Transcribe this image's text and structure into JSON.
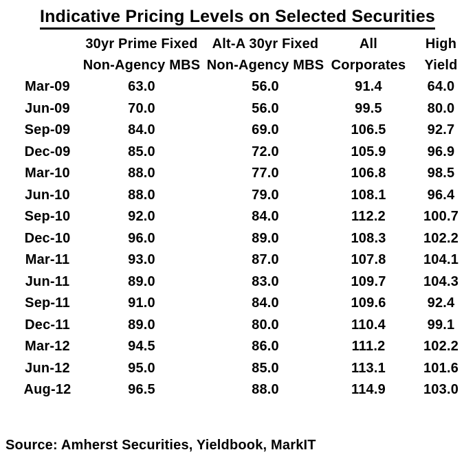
{
  "title": "Indicative Pricing Levels on Selected Securities",
  "table": {
    "columns": [
      {
        "line1": "",
        "line2": ""
      },
      {
        "line1": "30yr Prime Fixed",
        "line2": "Non-Agency MBS"
      },
      {
        "line1": "Alt-A 30yr Fixed",
        "line2": "Non-Agency MBS"
      },
      {
        "line1": "All",
        "line2": "Corporates"
      },
      {
        "line1": "High",
        "line2": "Yield"
      }
    ],
    "rows": [
      {
        "label": "Mar-09",
        "values": [
          "63.0",
          "56.0",
          "91.4",
          "64.0"
        ]
      },
      {
        "label": "Jun-09",
        "values": [
          "70.0",
          "56.0",
          "99.5",
          "80.0"
        ]
      },
      {
        "label": "Sep-09",
        "values": [
          "84.0",
          "69.0",
          "106.5",
          "92.7"
        ]
      },
      {
        "label": "Dec-09",
        "values": [
          "85.0",
          "72.0",
          "105.9",
          "96.9"
        ]
      },
      {
        "label": "Mar-10",
        "values": [
          "88.0",
          "77.0",
          "106.8",
          "98.5"
        ]
      },
      {
        "label": "Jun-10",
        "values": [
          "88.0",
          "79.0",
          "108.1",
          "96.4"
        ]
      },
      {
        "label": "Sep-10",
        "values": [
          "92.0",
          "84.0",
          "112.2",
          "100.7"
        ]
      },
      {
        "label": "Dec-10",
        "values": [
          "96.0",
          "89.0",
          "108.3",
          "102.2"
        ]
      },
      {
        "label": "Mar-11",
        "values": [
          "93.0",
          "87.0",
          "107.8",
          "104.1"
        ]
      },
      {
        "label": "Jun-11",
        "values": [
          "89.0",
          "83.0",
          "109.7",
          "104.3"
        ]
      },
      {
        "label": "Sep-11",
        "values": [
          "91.0",
          "84.0",
          "109.6",
          "92.4"
        ]
      },
      {
        "label": "Dec-11",
        "values": [
          "89.0",
          "80.0",
          "110.4",
          "99.1"
        ]
      },
      {
        "label": "Mar-12",
        "values": [
          "94.5",
          "86.0",
          "111.2",
          "102.2"
        ]
      },
      {
        "label": "Jun-12",
        "values": [
          "95.0",
          "85.0",
          "113.1",
          "101.6"
        ]
      },
      {
        "label": "Aug-12",
        "values": [
          "96.5",
          "88.0",
          "114.9",
          "103.0"
        ]
      }
    ]
  },
  "source": "Source: Amherst Securities, Yieldbook, MarkIT",
  "colors": {
    "text": "#000000",
    "background": "#ffffff"
  },
  "chart_data": {
    "type": "table",
    "title": "Indicative Pricing Levels on Selected Securities",
    "categories": [
      "Mar-09",
      "Jun-09",
      "Sep-09",
      "Dec-09",
      "Mar-10",
      "Jun-10",
      "Sep-10",
      "Dec-10",
      "Mar-11",
      "Jun-11",
      "Sep-11",
      "Dec-11",
      "Mar-12",
      "Jun-12",
      "Aug-12"
    ],
    "series": [
      {
        "name": "30yr Prime Fixed Non-Agency MBS",
        "values": [
          63.0,
          70.0,
          84.0,
          85.0,
          88.0,
          88.0,
          92.0,
          96.0,
          93.0,
          89.0,
          91.0,
          89.0,
          94.5,
          95.0,
          96.5
        ]
      },
      {
        "name": "Alt-A 30yr Fixed Non-Agency MBS",
        "values": [
          56.0,
          56.0,
          69.0,
          72.0,
          77.0,
          79.0,
          84.0,
          89.0,
          87.0,
          83.0,
          84.0,
          80.0,
          86.0,
          85.0,
          88.0
        ]
      },
      {
        "name": "All Corporates",
        "values": [
          91.4,
          99.5,
          106.5,
          105.9,
          106.8,
          108.1,
          112.2,
          108.3,
          107.8,
          109.7,
          109.6,
          110.4,
          111.2,
          113.1,
          114.9
        ]
      },
      {
        "name": "High Yield",
        "values": [
          64.0,
          80.0,
          92.7,
          96.9,
          98.5,
          96.4,
          100.7,
          102.2,
          104.1,
          104.3,
          92.4,
          99.1,
          102.2,
          101.6,
          103.0
        ]
      }
    ],
    "source": "Source: Amherst Securities, Yieldbook, MarkIT",
    "grid": false,
    "legend_position": "none"
  }
}
